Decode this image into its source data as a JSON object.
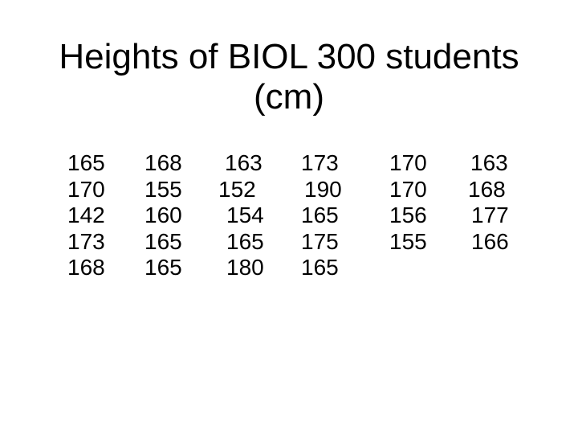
{
  "title": {
    "line1": "Heights of BIOL 300 students",
    "line2": "(cm)"
  },
  "columns": [
    [
      "165",
      "170",
      "142",
      "173",
      "168"
    ],
    [
      "168",
      "155",
      "160",
      "165",
      "165"
    ],
    [
      "163",
      "152",
      "154",
      "165",
      "180"
    ],
    [
      "173",
      "190",
      "165",
      "175",
      "165"
    ],
    [
      "170",
      "170",
      "156",
      "155"
    ],
    [
      "163",
      "168",
      "177",
      "166"
    ]
  ]
}
